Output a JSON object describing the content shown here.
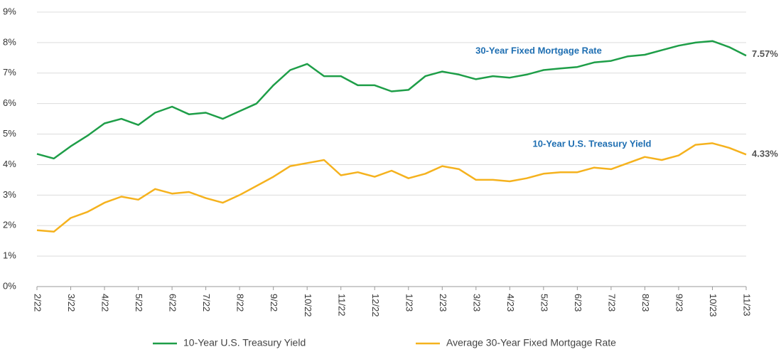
{
  "chart_data": {
    "type": "line",
    "categories": [
      "2/22",
      null,
      "3/22",
      null,
      "4/22",
      null,
      "5/22",
      null,
      "6/22",
      null,
      "7/22",
      null,
      "8/22",
      null,
      "9/22",
      null,
      "10/22",
      null,
      "11/22",
      null,
      "12/22",
      null,
      "1/23",
      null,
      "2/23",
      null,
      "3/23",
      null,
      "4/23",
      null,
      "5/23",
      null,
      "6/23",
      null,
      "7/23",
      null,
      "8/23",
      null,
      "9/23",
      null,
      "10/23",
      null,
      "11/23"
    ],
    "series": [
      {
        "name": "10-Year U.S. Treasury Yield",
        "color": "#1e9e48",
        "values": [
          4.35,
          4.2,
          4.6,
          4.95,
          5.35,
          5.5,
          5.3,
          5.7,
          5.9,
          5.65,
          5.7,
          5.5,
          5.75,
          6.0,
          6.6,
          7.1,
          7.3,
          6.9,
          6.9,
          6.6,
          6.6,
          6.4,
          6.45,
          6.9,
          7.05,
          6.95,
          6.8,
          6.9,
          6.85,
          6.95,
          7.1,
          7.15,
          7.2,
          7.35,
          7.4,
          7.55,
          7.6,
          7.75,
          7.9,
          8.0,
          8.05,
          7.85,
          7.57
        ],
        "value_labels": [
          null,
          null,
          null,
          null,
          null,
          null,
          null,
          null,
          null,
          null,
          null,
          null,
          null,
          null,
          null,
          null,
          null,
          null,
          null,
          null,
          null,
          null,
          null,
          null,
          null,
          null,
          null,
          null,
          null,
          null,
          null,
          null,
          null,
          null,
          null,
          null,
          null,
          null,
          null,
          null,
          null,
          null,
          "7.57%"
        ]
      },
      {
        "name": "Average 30-Year Fixed Mortgage Rate",
        "color": "#f5b21e",
        "values": [
          1.85,
          1.8,
          2.25,
          2.45,
          2.75,
          2.95,
          2.85,
          3.2,
          3.05,
          3.1,
          2.9,
          2.75,
          3.0,
          3.3,
          3.6,
          3.95,
          4.05,
          4.15,
          3.65,
          3.75,
          3.6,
          3.8,
          3.55,
          3.7,
          3.95,
          3.85,
          3.5,
          3.5,
          3.45,
          3.55,
          3.7,
          3.75,
          3.75,
          3.9,
          3.85,
          4.05,
          4.25,
          4.15,
          4.3,
          4.65,
          4.7,
          4.55,
          4.33
        ],
        "value_labels": [
          null,
          null,
          null,
          null,
          null,
          null,
          null,
          null,
          null,
          null,
          null,
          null,
          null,
          null,
          null,
          null,
          null,
          null,
          null,
          null,
          null,
          null,
          null,
          null,
          null,
          null,
          null,
          null,
          null,
          null,
          null,
          null,
          null,
          null,
          null,
          null,
          null,
          null,
          null,
          null,
          null,
          null,
          "4.33%"
        ]
      }
    ],
    "annotations": [
      "30-Year Fixed Mortgage Rate",
      "10-Year U.S. Treasury Yield"
    ],
    "ylim": [
      0,
      9
    ],
    "yticks": [
      {
        "value": 0,
        "label": "0%"
      },
      {
        "value": 1,
        "label": "1%"
      },
      {
        "value": 2,
        "label": "2%"
      },
      {
        "value": 3,
        "label": "3%"
      },
      {
        "value": 4,
        "label": "4%"
      },
      {
        "value": 5,
        "label": "5%"
      },
      {
        "value": 6,
        "label": "6%"
      },
      {
        "value": 7,
        "label": "7%"
      },
      {
        "value": 8,
        "label": "8%"
      },
      {
        "value": 9,
        "label": "9%"
      }
    ],
    "grid": true,
    "legend": "bottom"
  }
}
